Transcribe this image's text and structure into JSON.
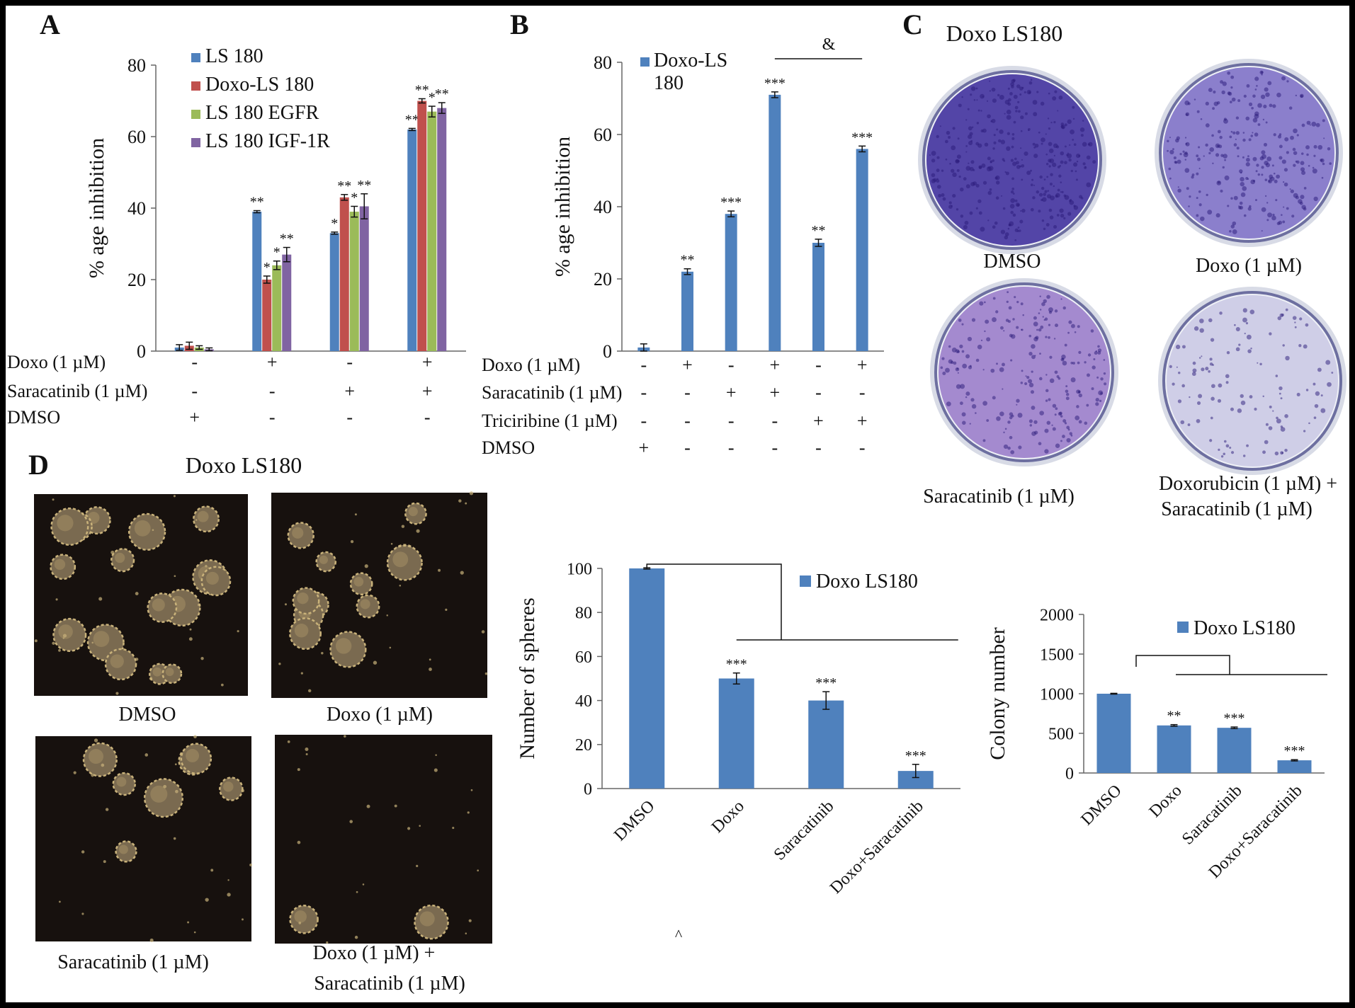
{
  "panels": {
    "A": {
      "letter": "A",
      "chart_data": {
        "type": "bar",
        "ylabel": "% age inhibition",
        "ylim": [
          0,
          80
        ],
        "yticks": [
          0,
          20,
          40,
          60,
          80
        ],
        "groups": 4,
        "series": [
          {
            "name": "LS 180",
            "color": "#4f81bd",
            "values": [
              1,
              39,
              33,
              62
            ],
            "errors": [
              0.8,
              0.3,
              0.3,
              0.3
            ],
            "sig": [
              "",
              "**",
              "*",
              "**"
            ]
          },
          {
            "name": "Doxo-LS 180",
            "color": "#c0504d",
            "values": [
              1.5,
              20,
              43,
              70
            ],
            "errors": [
              1.0,
              1.0,
              0.8,
              0.6
            ],
            "sig": [
              "",
              "*",
              "**",
              "**"
            ]
          },
          {
            "name": "LS 180 EGFR",
            "color": "#9bbb59",
            "values": [
              1,
              24,
              39,
              67
            ],
            "errors": [
              0.5,
              1.2,
              1.5,
              1.5
            ],
            "sig": [
              "",
              "*",
              "*",
              "*"
            ]
          },
          {
            "name": "LS 180 IGF-1R",
            "color": "#8064a2",
            "values": [
              0.5,
              27,
              40.5,
              68
            ],
            "errors": [
              0.4,
              2.0,
              3.5,
              1.5
            ],
            "sig": [
              "",
              "**",
              "**",
              "**"
            ]
          }
        ],
        "treatments": [
          {
            "label": "Doxo (1 µM)",
            "marks": [
              "-",
              "+",
              "-",
              "+"
            ]
          },
          {
            "label": "Saracatinib  (1 µM)",
            "marks": [
              "-",
              "-",
              "+",
              "+"
            ]
          },
          {
            "label": "DMSO",
            "marks": [
              "+",
              "-",
              "-",
              "-"
            ]
          }
        ]
      }
    },
    "B": {
      "letter": "B",
      "chart_data": {
        "type": "bar",
        "ylabel": "% age inhibition",
        "ylim": [
          0,
          80
        ],
        "yticks": [
          0,
          20,
          40,
          60,
          80
        ],
        "series": [
          {
            "name": "Doxo-LS 180",
            "color": "#4f81bd",
            "values": [
              1,
              22,
              38,
              71,
              30,
              56
            ],
            "errors": [
              1.0,
              0.8,
              0.8,
              0.8,
              1.0,
              0.8
            ],
            "sig": [
              "",
              "**",
              "***",
              "***",
              "**",
              "***"
            ]
          }
        ],
        "legend_lines": [
          "Doxo-LS",
          "180"
        ],
        "bracket_label": "&",
        "treatments": [
          {
            "label": "Doxo (1 µM)",
            "marks": [
              "-",
              "+",
              "-",
              "+",
              "-",
              "+"
            ]
          },
          {
            "label": "Saracatinib  (1 µM)",
            "marks": [
              "-",
              "-",
              "+",
              "+",
              "-",
              "-"
            ]
          },
          {
            "label": "Triciribine (1 µM)",
            "marks": [
              "-",
              "-",
              "-",
              "-",
              "+",
              "+"
            ]
          },
          {
            "label": "DMSO",
            "marks": [
              "+",
              "-",
              "-",
              "-",
              "-",
              "-"
            ]
          }
        ]
      }
    },
    "C": {
      "letter": "C",
      "title": "Doxo LS180",
      "wells": [
        {
          "caption": "DMSO",
          "density": 0.95,
          "hue": "#3a2a9a"
        },
        {
          "caption": "Doxo  (1 µM)",
          "density": 0.7,
          "hue": "#5a48b8"
        },
        {
          "caption": "Saracatinib  (1 µM)",
          "density": 0.55,
          "hue": "#6a3ab0"
        },
        {
          "caption_lines": [
            "Doxorubicin  (1 µM) +",
            "Saracatinib  (1 µM)"
          ],
          "density": 0.15,
          "hue": "#7a70c0"
        }
      ]
    },
    "D": {
      "letter": "D",
      "title": "Doxo LS180",
      "micrographs": [
        {
          "caption": "DMSO",
          "spheres": 16
        },
        {
          "caption": "Doxo  (1 µM)",
          "spheres": 12
        },
        {
          "caption": "Saracatinib  (1 µM)",
          "spheres": 7
        },
        {
          "caption_lines": [
            "Doxo  (1 µM) +",
            "Saracatinib (1 µM)"
          ],
          "spheres": 2
        }
      ],
      "caret": "^",
      "spheres_chart": {
        "type": "bar",
        "ylabel": "Number of spheres",
        "ylim": [
          0,
          100
        ],
        "yticks": [
          0,
          20,
          40,
          60,
          80,
          100
        ],
        "categories": [
          "DMSO",
          "Doxo",
          "Saracatinib",
          "Doxo+Saracatinib"
        ],
        "series": [
          {
            "name": "Doxo LS180",
            "color": "#4f81bd",
            "values": [
              100,
              50,
              40,
              8
            ],
            "errors": [
              0.3,
              2.5,
              4.0,
              3.0
            ],
            "sig": [
              "",
              "***",
              "***",
              "***"
            ]
          }
        ]
      },
      "colony_chart": {
        "type": "bar",
        "ylabel": "Colony number",
        "ylim": [
          0,
          2000
        ],
        "yticks": [
          0,
          500,
          1000,
          1500,
          2000
        ],
        "categories": [
          "DMSO",
          "Doxo",
          "Saracatinib",
          "Doxo+Saracatinib"
        ],
        "series": [
          {
            "name": "Doxo LS180",
            "color": "#4f81bd",
            "values": [
              1000,
              600,
              570,
              160
            ],
            "errors": [
              5,
              10,
              10,
              8
            ],
            "sig": [
              "",
              "**",
              "***",
              "***"
            ]
          }
        ]
      }
    }
  }
}
